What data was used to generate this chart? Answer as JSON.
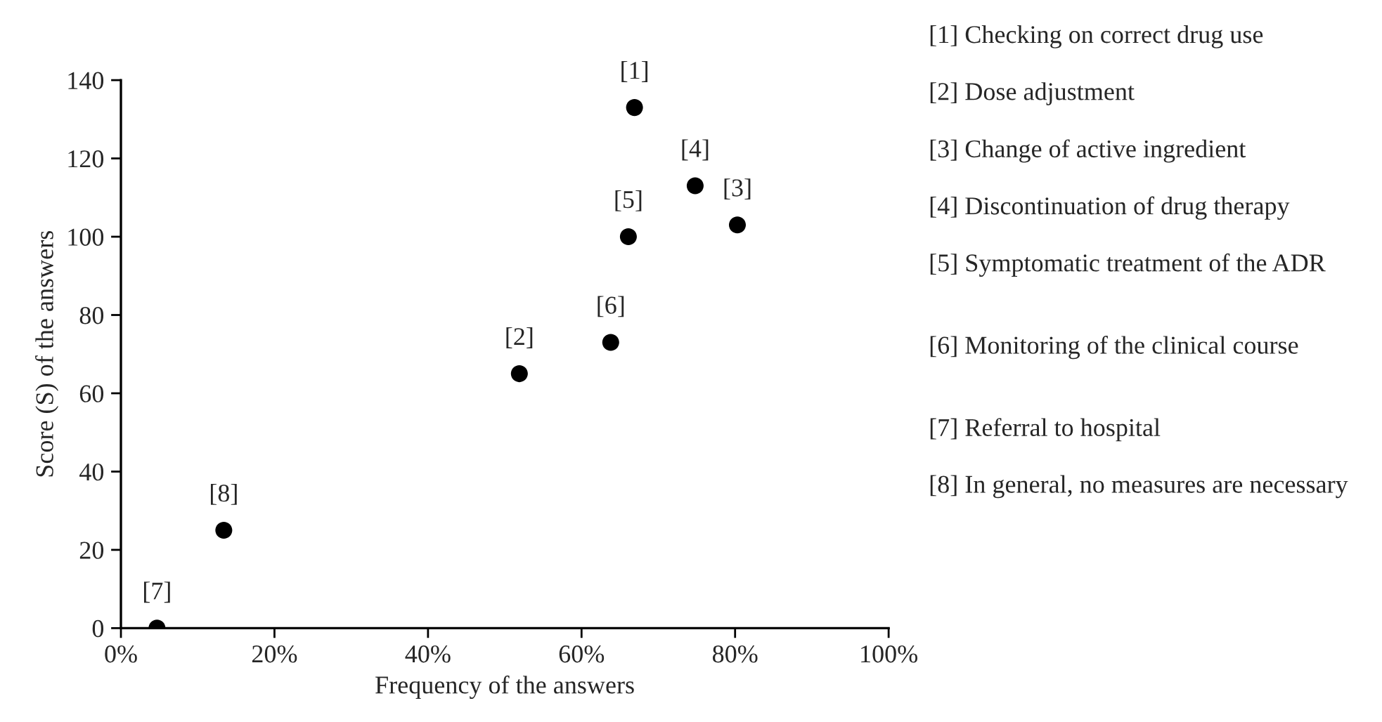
{
  "chart_data": {
    "type": "scatter",
    "xlabel": "Frequency of the answers",
    "ylabel": "Score (S) of the answers",
    "x": [
      66.9,
      51.9,
      80.3,
      74.8,
      66.1,
      63.8,
      4.7,
      13.4
    ],
    "values": [
      133,
      65,
      103,
      113,
      100,
      73,
      0,
      25
    ],
    "color": "#000000",
    "marker": "circle",
    "grid": false,
    "legend": false,
    "xlim": [
      0,
      100
    ],
    "xticks": [
      {
        "value": 0,
        "label": "0%"
      },
      {
        "value": 20,
        "label": "20%"
      },
      {
        "value": 40,
        "label": "40%"
      },
      {
        "value": 60,
        "label": "60%"
      },
      {
        "value": 80,
        "label": "80%"
      },
      {
        "value": 100,
        "label": "100%"
      }
    ],
    "ylim": [
      0,
      140
    ],
    "yticks": [
      0,
      20,
      40,
      60,
      80,
      100,
      120,
      140
    ],
    "annotations": [
      {
        "text": "[1]",
        "x": 66.9,
        "y": 133
      },
      {
        "text": "[2]",
        "x": 51.9,
        "y": 65
      },
      {
        "text": "[3]",
        "x": 80.3,
        "y": 103
      },
      {
        "text": "[4]",
        "x": 74.8,
        "y": 113
      },
      {
        "text": "[5]",
        "x": 66.1,
        "y": 100
      },
      {
        "text": "[6]",
        "x": 63.8,
        "y": 73
      },
      {
        "text": "[7]",
        "x": 4.7,
        "y": 0
      },
      {
        "text": "[8]",
        "x": 13.4,
        "y": 25
      },
      "[1] Checking on correct drug use",
      "[2] Dose adjustment",
      "[3] Change of active ingredient",
      "[4] Discontinuation of drug therapy",
      "[5] Symptomatic treatment of the ADR",
      "[6] Monitoring of the clinical course",
      "[7] Referral to hospital",
      "[8] In general, no measures are necessary"
    ]
  }
}
